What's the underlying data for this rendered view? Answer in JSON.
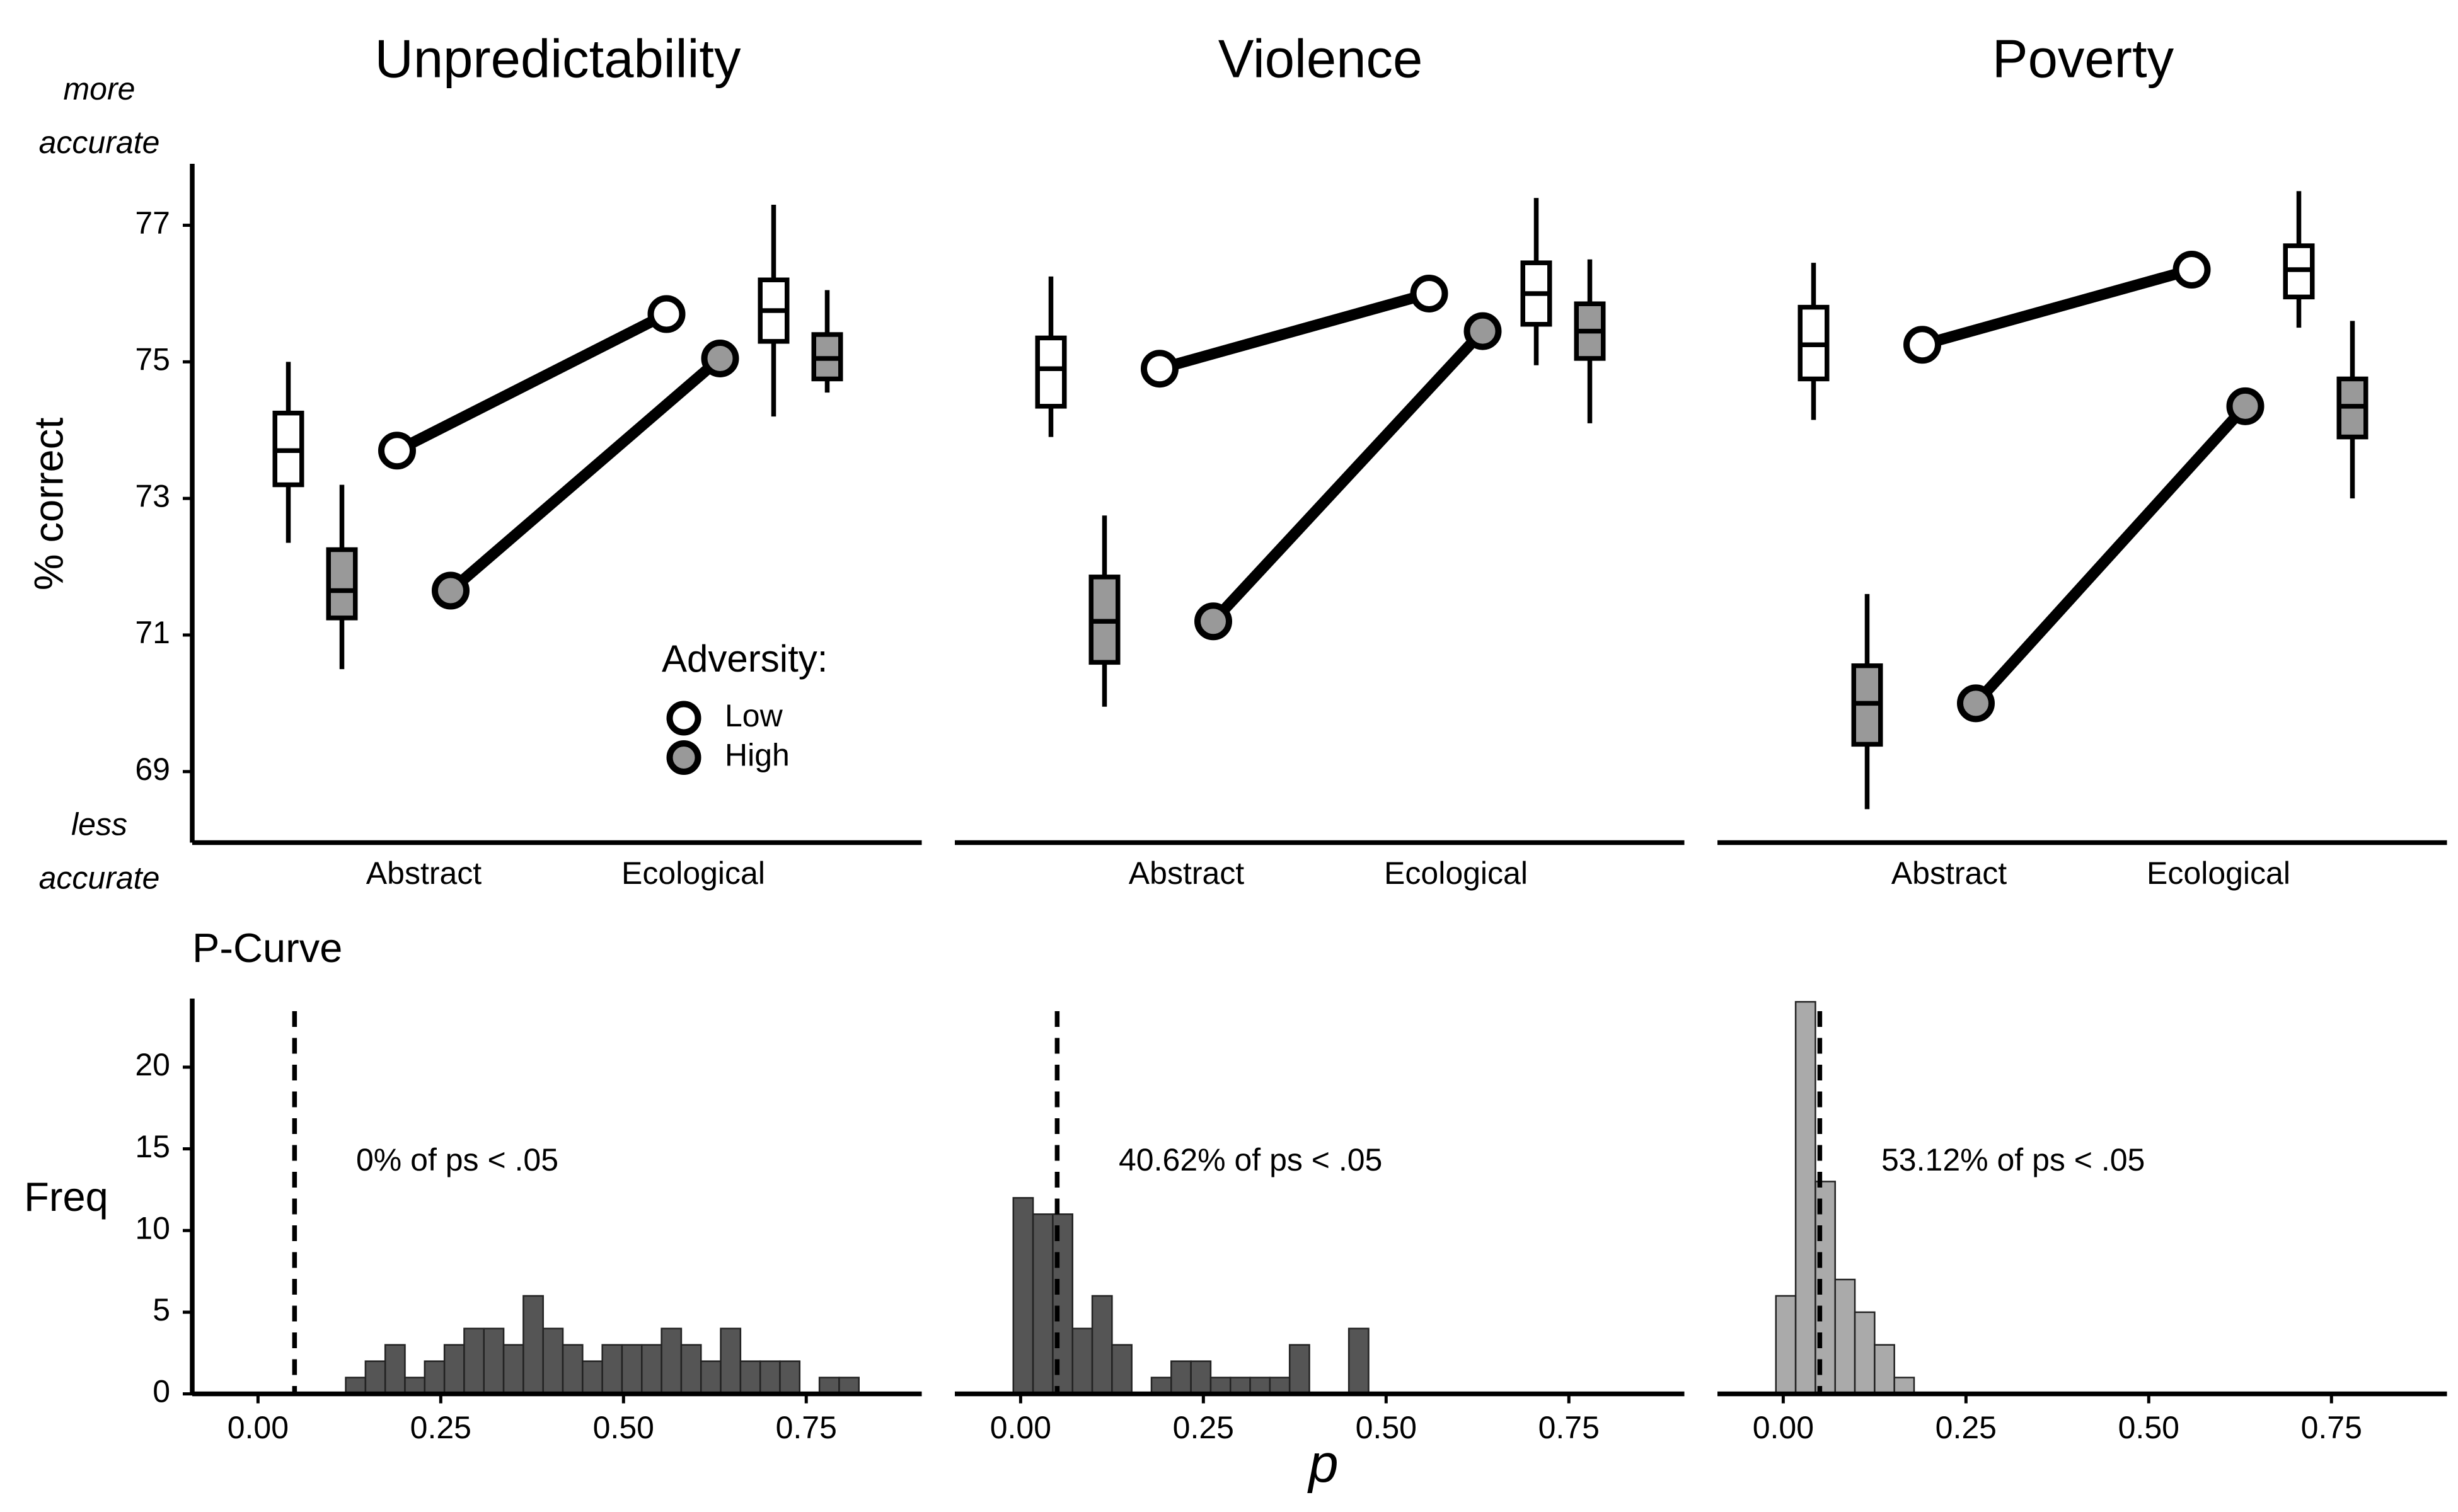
{
  "chart_data": [
    {
      "type": "interaction",
      "title": "Unpredictability",
      "categories": [
        "Abstract",
        "Ecological"
      ],
      "ylim": [
        67.96,
        77.9
      ],
      "yticks": [
        69,
        71,
        73,
        75,
        77
      ],
      "y_label": "% correct",
      "top_note": [
        "more",
        "accurate"
      ],
      "bottom_note": [
        "less",
        "accurate"
      ],
      "legend_title": "Adversity:",
      "series": [
        {
          "name": "Low",
          "color": "#ffffff",
          "values": [
            73.7,
            75.7
          ],
          "box": [
            [
              72.35,
              73.2,
              73.7,
              74.25,
              75.0
            ],
            [
              74.2,
              75.3,
              75.75,
              76.2,
              77.3
            ]
          ]
        },
        {
          "name": "High",
          "color": "#999999",
          "values": [
            71.65,
            75.05
          ],
          "box": [
            [
              70.5,
              71.25,
              71.65,
              72.25,
              73.2
            ],
            [
              74.55,
              74.75,
              75.05,
              75.4,
              76.05
            ]
          ]
        }
      ]
    },
    {
      "type": "interaction",
      "title": "Violence",
      "categories": [
        "Abstract",
        "Ecological"
      ],
      "ylim": [
        67.96,
        77.9
      ],
      "series": [
        {
          "color": "#ffffff",
          "values": [
            74.9,
            76.0
          ],
          "box": [
            [
              73.9,
              74.35,
              74.9,
              75.35,
              76.25
            ],
            [
              74.95,
              75.55,
              76.0,
              76.45,
              77.4
            ]
          ]
        },
        {
          "color": "#999999",
          "values": [
            71.2,
            75.45
          ],
          "box": [
            [
              69.95,
              70.6,
              71.2,
              71.85,
              72.75
            ],
            [
              74.1,
              75.05,
              75.45,
              75.85,
              76.5
            ]
          ]
        }
      ]
    },
    {
      "type": "interaction",
      "title": "Poverty",
      "categories": [
        "Abstract",
        "Ecological"
      ],
      "ylim": [
        67.96,
        77.9
      ],
      "series": [
        {
          "color": "#ffffff",
          "values": [
            75.25,
            76.35
          ],
          "box": [
            [
              74.15,
              74.75,
              75.25,
              75.8,
              76.45
            ],
            [
              75.5,
              75.95,
              76.35,
              76.7,
              77.5
            ]
          ]
        },
        {
          "color": "#999999",
          "values": [
            70.0,
            74.35
          ],
          "box": [
            [
              68.45,
              69.4,
              70.0,
              70.55,
              71.6
            ],
            [
              73.0,
              73.9,
              74.35,
              74.75,
              75.6
            ]
          ]
        }
      ]
    },
    {
      "type": "histogram",
      "title": "P-Curve",
      "y_label": "Freq",
      "color": "#555555",
      "bins": [
        0.12,
        0.147,
        0.174,
        0.201,
        0.228,
        0.255,
        0.282,
        0.309,
        0.336,
        0.363,
        0.39,
        0.417,
        0.444,
        0.471,
        0.498,
        0.525,
        0.552,
        0.579,
        0.606,
        0.633,
        0.66,
        0.687,
        0.714,
        0.741,
        0.768,
        0.795,
        0.822
      ],
      "counts": [
        1,
        2,
        3,
        1,
        2,
        3,
        4,
        4,
        3,
        6,
        4,
        3,
        2,
        3,
        3,
        3,
        4,
        3,
        2,
        4,
        2,
        2,
        2,
        0,
        1,
        1
      ],
      "vline": 0.05,
      "annotation": "0% of ps < .05",
      "xlim": [
        -0.09,
        0.908
      ],
      "xticks": [
        {
          "value": 0,
          "label": "0.00"
        },
        {
          "value": 0.25,
          "label": "0.25"
        },
        {
          "value": 0.5,
          "label": "0.50"
        },
        {
          "value": 0.75,
          "label": "0.75"
        }
      ],
      "ylim": [
        0,
        24.2
      ],
      "yticks": [
        0,
        5,
        10,
        15,
        20
      ]
    },
    {
      "type": "histogram",
      "color": "#555555",
      "x_label": "p",
      "bins": [
        -0.01,
        0.017,
        0.044,
        0.071,
        0.098,
        0.125,
        0.152,
        0.179,
        0.206,
        0.233,
        0.26,
        0.287,
        0.314,
        0.341,
        0.368,
        0.395,
        0.422,
        0.449,
        0.476
      ],
      "counts": [
        12,
        11,
        11,
        4,
        6,
        3,
        0,
        1,
        2,
        2,
        1,
        1,
        1,
        1,
        3,
        0,
        0,
        4
      ],
      "vline": 0.05,
      "annotation": "40.62% of ps < .05",
      "xlim": [
        -0.09,
        0.908
      ],
      "xticks": [
        {
          "value": 0,
          "label": "0.00"
        },
        {
          "value": 0.25,
          "label": "0.25"
        },
        {
          "value": 0.5,
          "label": "0.50"
        },
        {
          "value": 0.75,
          "label": "0.75"
        }
      ],
      "ylim": [
        0,
        24.2
      ]
    },
    {
      "type": "histogram",
      "color": "#aaaaaa",
      "bins": [
        -0.01,
        0.017,
        0.044,
        0.071,
        0.098,
        0.125,
        0.152,
        0.179
      ],
      "counts": [
        6,
        24,
        13,
        7,
        5,
        3,
        1
      ],
      "vline": 0.05,
      "annotation": "53.12% of ps < .05",
      "xlim": [
        -0.09,
        0.908
      ],
      "xticks": [
        {
          "value": 0,
          "label": "0.00"
        },
        {
          "value": 0.25,
          "label": "0.25"
        },
        {
          "value": 0.5,
          "label": "0.50"
        },
        {
          "value": 0.75,
          "label": "0.75"
        }
      ],
      "ylim": [
        0,
        24.2
      ]
    }
  ]
}
